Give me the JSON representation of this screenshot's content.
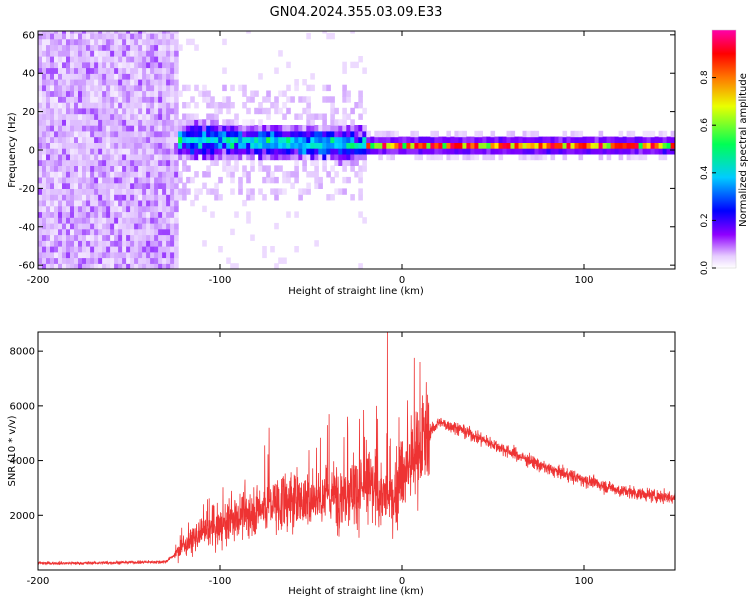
{
  "title": "GN04.2024.355.03.09.E33",
  "chart_data": [
    {
      "type": "heatmap",
      "name": "spectrogram",
      "xlabel": "Height of straight line (km)",
      "ylabel": "Frequency (Hz)",
      "xlim": [
        -200,
        150
      ],
      "ylim": [
        -62,
        62
      ],
      "x_ticks": [
        -200,
        -100,
        0,
        100
      ],
      "y_ticks": [
        -60,
        -40,
        -20,
        0,
        20,
        40,
        60
      ],
      "colorbar": {
        "label": "Normalized spectral amplitude",
        "range": [
          0,
          1
        ],
        "ticks": [
          0.0,
          0.2,
          0.4,
          0.6,
          0.8
        ],
        "colors": [
          "#ffffff",
          "#cc99ff",
          "#7a00ff",
          "#0000ff",
          "#00ddff",
          "#00ff44",
          "#ffee00",
          "#ff6600",
          "#ff0000",
          "#ff00aa"
        ]
      },
      "regions": [
        {
          "x_range": [
            -200,
            -125
          ],
          "desc": "broadband noise",
          "amplitude": 0.15
        },
        {
          "x_range": [
            -125,
            -20
          ],
          "desc": "energy centered near 0-5 Hz",
          "amplitude": 0.45
        },
        {
          "x_range": [
            -20,
            150
          ],
          "desc": "narrow band near 0-2 Hz",
          "amplitude": 0.9
        }
      ]
    },
    {
      "type": "line",
      "name": "snr",
      "xlabel": "Height of straight line (km)",
      "ylabel": "SNR (10 * v/v)",
      "xlim": [
        -200,
        150
      ],
      "ylim": [
        0,
        8700
      ],
      "x_ticks": [
        -200,
        -100,
        0,
        100
      ],
      "y_ticks": [
        2000,
        4000,
        6000,
        8000
      ],
      "color": "#ee3333",
      "series": [
        {
          "name": "SNR",
          "x": [
            -200,
            -175,
            -150,
            -130,
            -125,
            -120,
            -110,
            -100,
            -90,
            -80,
            -70,
            -60,
            -50,
            -40,
            -30,
            -20,
            -15,
            -10,
            -5,
            0,
            5,
            10,
            15,
            20,
            25,
            30,
            40,
            50,
            60,
            70,
            80,
            90,
            100,
            110,
            120,
            130,
            140,
            150
          ],
          "y": [
            250,
            250,
            280,
            300,
            550,
            900,
            1300,
            1600,
            1900,
            2200,
            2400,
            2500,
            2600,
            2700,
            2900,
            3000,
            2900,
            2700,
            2500,
            3500,
            3900,
            4500,
            5000,
            5400,
            5300,
            5200,
            4900,
            4600,
            4300,
            4000,
            3700,
            3500,
            3300,
            3100,
            2900,
            2800,
            2700,
            2650
          ],
          "spikes": [
            {
              "x": -73,
              "y": 5200
            },
            {
              "x": -40,
              "y": 5700
            },
            {
              "x": -30,
              "y": 5600
            },
            {
              "x": -14,
              "y": 6000
            },
            {
              "x": -8,
              "y": 8700
            },
            {
              "x": 3,
              "y": 6200
            }
          ]
        }
      ]
    }
  ]
}
